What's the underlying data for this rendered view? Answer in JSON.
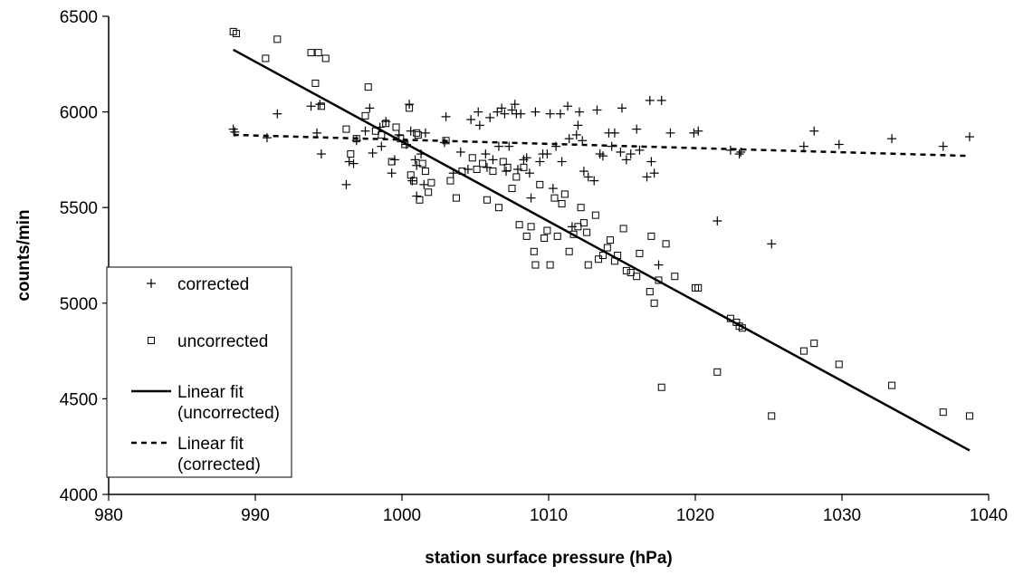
{
  "chart_data": {
    "type": "scatter",
    "title": "",
    "xlabel": "station surface pressure (hPa)",
    "ylabel": "counts/min",
    "xlim": [
      980,
      1040
    ],
    "ylim": [
      4000,
      6500
    ],
    "xticks": [
      980,
      990,
      1000,
      1010,
      1020,
      1030,
      1040
    ],
    "yticks": [
      4000,
      4500,
      5000,
      5500,
      6000,
      6500
    ],
    "grid": false,
    "legend_position": "bottom-left",
    "series": [
      {
        "name": "corrected",
        "marker": "plus",
        "points": [
          [
            988.5,
            5910
          ],
          [
            988.6,
            5895
          ],
          [
            990.8,
            5865
          ],
          [
            991.5,
            5990
          ],
          [
            993.8,
            6030
          ],
          [
            994.2,
            5890
          ],
          [
            994.4,
            6040
          ],
          [
            994.5,
            5780
          ],
          [
            996.2,
            5620
          ],
          [
            996.4,
            5740
          ],
          [
            996.7,
            5730
          ],
          [
            996.9,
            5850
          ],
          [
            997.5,
            5900
          ],
          [
            997.8,
            6020
          ],
          [
            998.0,
            5785
          ],
          [
            998.5,
            5920
          ],
          [
            998.6,
            5820
          ],
          [
            998.9,
            5950
          ],
          [
            999.3,
            5680
          ],
          [
            999.5,
            5750
          ],
          [
            999.8,
            5880
          ],
          [
            1000.3,
            5830
          ],
          [
            1000.5,
            6040
          ],
          [
            1000.6,
            5900
          ],
          [
            1000.7,
            5640
          ],
          [
            1000.9,
            5750
          ],
          [
            1001.0,
            5720
          ],
          [
            1001.0,
            5560
          ],
          [
            1001.3,
            5780
          ],
          [
            1001.5,
            5620
          ],
          [
            1001.6,
            5890
          ],
          [
            1002.9,
            5840
          ],
          [
            1003.0,
            5975
          ],
          [
            1003.5,
            5680
          ],
          [
            1004.0,
            5790
          ],
          [
            1004.5,
            5700
          ],
          [
            1004.7,
            5960
          ],
          [
            1005.2,
            6000
          ],
          [
            1005.3,
            5930
          ],
          [
            1005.7,
            5780
          ],
          [
            1005.8,
            5710
          ],
          [
            1006.0,
            5970
          ],
          [
            1006.2,
            5750
          ],
          [
            1006.5,
            6000
          ],
          [
            1006.6,
            5820
          ],
          [
            1006.8,
            6020
          ],
          [
            1007.0,
            5990
          ],
          [
            1007.1,
            5690
          ],
          [
            1007.3,
            5820
          ],
          [
            1007.5,
            6010
          ],
          [
            1007.7,
            6040
          ],
          [
            1007.8,
            5990
          ],
          [
            1007.9,
            5700
          ],
          [
            1008.1,
            5990
          ],
          [
            1008.3,
            5750
          ],
          [
            1008.5,
            5760
          ],
          [
            1008.7,
            5680
          ],
          [
            1008.8,
            5550
          ],
          [
            1009.1,
            6000
          ],
          [
            1009.4,
            5740
          ],
          [
            1009.6,
            5780
          ],
          [
            1009.9,
            5780
          ],
          [
            1010.1,
            5990
          ],
          [
            1010.3,
            5600
          ],
          [
            1010.5,
            5820
          ],
          [
            1010.8,
            5990
          ],
          [
            1010.9,
            5740
          ],
          [
            1011.3,
            6030
          ],
          [
            1011.4,
            5860
          ],
          [
            1011.6,
            5400
          ],
          [
            1011.9,
            5880
          ],
          [
            1012.0,
            5930
          ],
          [
            1012.1,
            6000
          ],
          [
            1012.3,
            5850
          ],
          [
            1012.4,
            5690
          ],
          [
            1012.7,
            5660
          ],
          [
            1013.1,
            5640
          ],
          [
            1013.3,
            6010
          ],
          [
            1013.5,
            5780
          ],
          [
            1013.7,
            5770
          ],
          [
            1014.1,
            5890
          ],
          [
            1014.3,
            5820
          ],
          [
            1014.5,
            5890
          ],
          [
            1014.9,
            5790
          ],
          [
            1015.0,
            6020
          ],
          [
            1015.3,
            5750
          ],
          [
            1015.6,
            5780
          ],
          [
            1016.0,
            5910
          ],
          [
            1016.2,
            5800
          ],
          [
            1016.7,
            5660
          ],
          [
            1016.9,
            6060
          ],
          [
            1017.0,
            5740
          ],
          [
            1017.2,
            5680
          ],
          [
            1017.5,
            5200
          ],
          [
            1017.7,
            6060
          ],
          [
            1018.3,
            5890
          ],
          [
            1019.9,
            5890
          ],
          [
            1020.2,
            5900
          ],
          [
            1021.5,
            5430
          ],
          [
            1022.4,
            5800
          ],
          [
            1023.0,
            5780
          ],
          [
            1023.1,
            5790
          ],
          [
            1025.2,
            5310
          ],
          [
            1027.4,
            5820
          ],
          [
            1028.1,
            5900
          ],
          [
            1029.8,
            5830
          ],
          [
            1033.4,
            5860
          ],
          [
            1036.9,
            5820
          ],
          [
            1038.7,
            5870
          ]
        ]
      },
      {
        "name": "uncorrected",
        "marker": "square",
        "points": [
          [
            988.5,
            6420
          ],
          [
            988.7,
            6410
          ],
          [
            990.7,
            6280
          ],
          [
            991.5,
            6380
          ],
          [
            993.8,
            6310
          ],
          [
            994.1,
            6150
          ],
          [
            994.3,
            6310
          ],
          [
            994.5,
            6030
          ],
          [
            994.8,
            6280
          ],
          [
            996.2,
            5910
          ],
          [
            996.5,
            5780
          ],
          [
            996.9,
            5860
          ],
          [
            997.5,
            5980
          ],
          [
            997.7,
            6130
          ],
          [
            998.2,
            5900
          ],
          [
            998.6,
            5880
          ],
          [
            998.9,
            5940
          ],
          [
            999.3,
            5740
          ],
          [
            999.6,
            5920
          ],
          [
            999.9,
            5860
          ],
          [
            1000.2,
            5830
          ],
          [
            1000.5,
            6020
          ],
          [
            1000.6,
            5670
          ],
          [
            1000.8,
            5640
          ],
          [
            1001.0,
            5890
          ],
          [
            1001.1,
            5880
          ],
          [
            1001.2,
            5540
          ],
          [
            1001.4,
            5730
          ],
          [
            1001.6,
            5690
          ],
          [
            1001.8,
            5580
          ],
          [
            1002.0,
            5630
          ],
          [
            1003.0,
            5850
          ],
          [
            1003.3,
            5640
          ],
          [
            1003.7,
            5550
          ],
          [
            1004.1,
            5690
          ],
          [
            1004.8,
            5760
          ],
          [
            1005.1,
            5700
          ],
          [
            1005.5,
            5730
          ],
          [
            1005.8,
            5540
          ],
          [
            1006.2,
            5690
          ],
          [
            1006.6,
            5500
          ],
          [
            1006.9,
            5740
          ],
          [
            1007.2,
            5710
          ],
          [
            1007.5,
            5600
          ],
          [
            1007.8,
            5660
          ],
          [
            1008.0,
            5410
          ],
          [
            1008.3,
            5710
          ],
          [
            1008.5,
            5350
          ],
          [
            1008.8,
            5400
          ],
          [
            1009.0,
            5270
          ],
          [
            1009.1,
            5200
          ],
          [
            1009.4,
            5620
          ],
          [
            1009.7,
            5340
          ],
          [
            1009.9,
            5380
          ],
          [
            1010.1,
            5200
          ],
          [
            1010.4,
            5550
          ],
          [
            1010.6,
            5350
          ],
          [
            1010.9,
            5520
          ],
          [
            1011.1,
            5570
          ],
          [
            1011.4,
            5270
          ],
          [
            1011.7,
            5360
          ],
          [
            1012.0,
            5400
          ],
          [
            1012.2,
            5500
          ],
          [
            1012.4,
            5420
          ],
          [
            1012.6,
            5370
          ],
          [
            1012.7,
            5200
          ],
          [
            1013.2,
            5460
          ],
          [
            1013.4,
            5230
          ],
          [
            1013.7,
            5250
          ],
          [
            1014.0,
            5290
          ],
          [
            1014.2,
            5330
          ],
          [
            1014.5,
            5220
          ],
          [
            1014.7,
            5250
          ],
          [
            1015.1,
            5390
          ],
          [
            1015.3,
            5170
          ],
          [
            1015.6,
            5160
          ],
          [
            1016.0,
            5140
          ],
          [
            1016.2,
            5260
          ],
          [
            1016.9,
            5060
          ],
          [
            1017.0,
            5350
          ],
          [
            1017.2,
            5000
          ],
          [
            1017.5,
            5120
          ],
          [
            1017.7,
            4560
          ],
          [
            1018.0,
            5310
          ],
          [
            1018.6,
            5140
          ],
          [
            1020.0,
            5080
          ],
          [
            1020.2,
            5080
          ],
          [
            1021.5,
            4640
          ],
          [
            1022.4,
            4920
          ],
          [
            1022.8,
            4900
          ],
          [
            1023.0,
            4880
          ],
          [
            1023.2,
            4870
          ],
          [
            1025.2,
            4410
          ],
          [
            1027.4,
            4750
          ],
          [
            1028.1,
            4790
          ],
          [
            1029.8,
            4680
          ],
          [
            1033.4,
            4570
          ],
          [
            1036.9,
            4430
          ],
          [
            1038.7,
            4410
          ]
        ]
      }
    ],
    "fits": [
      {
        "name": "Linear fit (uncorrected)",
        "style": "solid",
        "x": [
          988.5,
          1038.7
        ],
        "y": [
          6325,
          4230
        ]
      },
      {
        "name": "Linear fit (corrected)",
        "style": "dashed",
        "x": [
          988.5,
          1038.7
        ],
        "y": [
          5880,
          5770
        ]
      }
    ]
  },
  "legend": {
    "corrected": "corrected",
    "uncorrected": "uncorrected",
    "fit_uncorrected_line1": "Linear fit",
    "fit_uncorrected_line2": "(uncorrected)",
    "fit_corrected_line1": "Linear fit",
    "fit_corrected_line2": "(corrected)"
  }
}
